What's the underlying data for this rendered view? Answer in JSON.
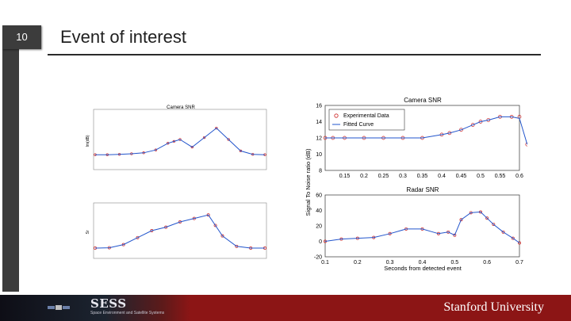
{
  "slide": {
    "number": "10",
    "title": "Event of interest"
  },
  "footer": {
    "logo_text": "SESS",
    "logo_subtitle": "Space Environment and Satellite Systems",
    "institution": "Stanford University"
  },
  "colors": {
    "accent": "#8c1515",
    "sidebar": "#3c3c3c",
    "data_marker": "#cc2222",
    "fit_line": "#2255cc"
  },
  "chart_data": [
    {
      "type": "line",
      "title": "Camera SNR",
      "ylabel": "Im(dB)",
      "ylim": [
        0,
        3
      ],
      "x": [
        0,
        0.1,
        0.2,
        0.3,
        0.4,
        0.5,
        0.6,
        0.65,
        0.7,
        0.8,
        0.9,
        1.0,
        1.1,
        1.2,
        1.3,
        1.4
      ],
      "series": [
        {
          "name": "",
          "values": [
            0.7,
            0.7,
            0.72,
            0.75,
            0.8,
            0.95,
            1.3,
            1.4,
            1.5,
            1.1,
            1.6,
            2.1,
            1.5,
            0.9,
            0.72,
            0.7
          ]
        }
      ]
    },
    {
      "type": "line",
      "title": "",
      "ylabel": "Sr",
      "ylim": [
        0,
        15
      ],
      "x": [
        0,
        0.1,
        0.2,
        0.3,
        0.4,
        0.5,
        0.6,
        0.7,
        0.8,
        0.85,
        0.9,
        1.0,
        1.1,
        1.2
      ],
      "series": [
        {
          "name": "",
          "values": [
            2.5,
            2.6,
            3.5,
            5.5,
            7.5,
            8.5,
            10,
            11,
            12,
            9,
            6,
            3,
            2.5,
            2.5
          ]
        }
      ]
    },
    {
      "type": "line",
      "title": "Camera SNR",
      "xlim": [
        0.1,
        0.6
      ],
      "ylim": [
        8,
        16
      ],
      "xticks": [
        "0.15",
        "0.2",
        "0.25",
        "0.3",
        "0.35",
        "0.4",
        "0.45",
        "0.5",
        "0.55",
        "0.6"
      ],
      "yticks": [
        "8",
        "10",
        "12",
        "14",
        "16"
      ],
      "legend": {
        "entries": [
          "Experimental Data",
          "Fitted Curve"
        ],
        "placement": "top-left"
      },
      "x": [
        0.1,
        0.12,
        0.15,
        0.2,
        0.25,
        0.3,
        0.35,
        0.4,
        0.42,
        0.45,
        0.48,
        0.5,
        0.52,
        0.55,
        0.58,
        0.6,
        0.62
      ],
      "series": [
        {
          "name": "Experimental Data",
          "values": [
            12,
            12,
            12,
            12,
            12,
            12,
            12,
            12.4,
            12.6,
            13,
            13.6,
            14,
            14.2,
            14.6,
            14.6,
            14.6,
            11.2
          ]
        },
        {
          "name": "Fitted Curve",
          "values": [
            12,
            12,
            12,
            12,
            12,
            12,
            12,
            12.4,
            12.6,
            13,
            13.6,
            14,
            14.2,
            14.6,
            14.6,
            14.4,
            11.2
          ]
        }
      ]
    },
    {
      "type": "line",
      "title": "Radar SNR",
      "xlabel": "Seconds from detected event",
      "shared_ylabel": "Signal To Noise ratio (dB)",
      "xlim": [
        0.1,
        0.7
      ],
      "ylim": [
        -20,
        60
      ],
      "xticks": [
        "0.1",
        "0.2",
        "0.3",
        "0.4",
        "0.5",
        "0.6",
        "0.7"
      ],
      "yticks": [
        "-20",
        "0",
        "20",
        "40",
        "60"
      ],
      "x": [
        0.1,
        0.15,
        0.2,
        0.25,
        0.3,
        0.35,
        0.4,
        0.45,
        0.48,
        0.5,
        0.52,
        0.55,
        0.58,
        0.6,
        0.62,
        0.65,
        0.68,
        0.7
      ],
      "series": [
        {
          "name": "",
          "values": [
            0,
            3,
            4,
            5,
            10,
            16,
            16,
            10,
            12,
            8,
            28,
            37,
            38,
            30,
            22,
            12,
            4,
            -2
          ]
        }
      ]
    }
  ]
}
